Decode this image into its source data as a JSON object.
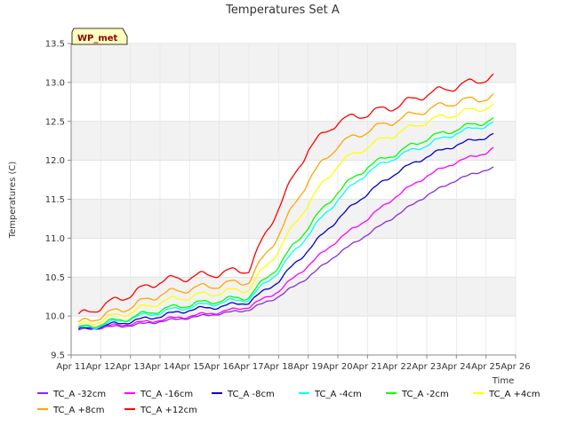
{
  "chart_data": {
    "type": "line",
    "title": "Temperatures Set A",
    "xlabel": "Time",
    "ylabel": "Temperatures (C)",
    "site_label": "WP_met",
    "x_ticks": [
      "Apr 11",
      "Apr 12",
      "Apr 13",
      "Apr 14",
      "Apr 15",
      "Apr 16",
      "Apr 17",
      "Apr 18",
      "Apr 19",
      "Apr 20",
      "Apr 21",
      "Apr 22",
      "Apr 23",
      "Apr 24",
      "Apr 25",
      "Apr 26"
    ],
    "y_ticks": [
      "9.5",
      "10.0",
      "10.5",
      "11.0",
      "11.5",
      "12.0",
      "12.5",
      "13.0",
      "13.5"
    ],
    "xlim": [
      "Apr 11",
      "Apr 26"
    ],
    "ylim": [
      9.5,
      13.5
    ],
    "grid": true,
    "shaded_bands": [
      [
        10.0,
        10.5
      ],
      [
        11.0,
        11.5
      ],
      [
        12.0,
        12.5
      ],
      [
        13.0,
        13.5
      ]
    ],
    "x": [
      "Apr 11 06:00",
      "Apr 12 00:00",
      "Apr 13 00:00",
      "Apr 14 00:00",
      "Apr 15 00:00",
      "Apr 16 00:00",
      "Apr 17 00:00",
      "Apr 18 00:00",
      "Apr 19 00:00",
      "Apr 20 00:00",
      "Apr 21 00:00",
      "Apr 22 00:00",
      "Apr 23 00:00",
      "Apr 24 00:00",
      "Apr 25 00:00",
      "Apr 25 06:00"
    ],
    "series": [
      {
        "name": "TC_A -32cm",
        "color": "#8a2be2",
        "values": [
          9.82,
          9.85,
          9.88,
          9.93,
          9.98,
          10.03,
          10.08,
          10.25,
          10.5,
          10.8,
          11.05,
          11.3,
          11.55,
          11.75,
          11.88,
          11.9
        ]
      },
      {
        "name": "TC_A -16cm",
        "color": "#ff00ff",
        "values": [
          9.83,
          9.86,
          9.9,
          9.95,
          10.0,
          10.05,
          10.12,
          10.32,
          10.65,
          10.98,
          11.25,
          11.55,
          11.8,
          11.98,
          12.1,
          12.15
        ]
      },
      {
        "name": "TC_A -8cm",
        "color": "#0000cd",
        "values": [
          9.82,
          9.87,
          9.93,
          10.0,
          10.08,
          10.12,
          10.18,
          10.45,
          10.85,
          11.25,
          11.58,
          11.85,
          12.05,
          12.2,
          12.3,
          12.33
        ]
      },
      {
        "name": "TC_A -4cm",
        "color": "#00ffff",
        "values": [
          9.83,
          9.88,
          9.97,
          10.05,
          10.12,
          10.17,
          10.22,
          10.58,
          11.05,
          11.5,
          11.85,
          12.05,
          12.2,
          12.35,
          12.45,
          12.48
        ]
      },
      {
        "name": "TC_A -2cm",
        "color": "#00ff00",
        "values": [
          9.84,
          9.9,
          9.98,
          10.08,
          10.15,
          10.2,
          10.25,
          10.65,
          11.15,
          11.6,
          11.92,
          12.1,
          12.28,
          12.4,
          12.5,
          12.53
        ]
      },
      {
        "name": "TC_A +4cm",
        "color": "#ffff00",
        "values": [
          9.87,
          9.95,
          10.05,
          10.18,
          10.25,
          10.3,
          10.35,
          10.85,
          11.45,
          11.95,
          12.18,
          12.35,
          12.5,
          12.6,
          12.68,
          12.7
        ]
      },
      {
        "name": "TC_A +8cm",
        "color": "#ffa500",
        "values": [
          9.9,
          10.0,
          10.12,
          10.28,
          10.35,
          10.4,
          10.45,
          11.05,
          11.75,
          12.2,
          12.38,
          12.52,
          12.65,
          12.75,
          12.8,
          12.82
        ]
      },
      {
        "name": "TC_A +12cm",
        "color": "#ff0000",
        "values": [
          10.0,
          10.12,
          10.28,
          10.45,
          10.5,
          10.55,
          10.6,
          11.4,
          12.15,
          12.5,
          12.6,
          12.7,
          12.85,
          12.95,
          13.05,
          13.07
        ]
      }
    ],
    "legend_position": "bottom"
  }
}
